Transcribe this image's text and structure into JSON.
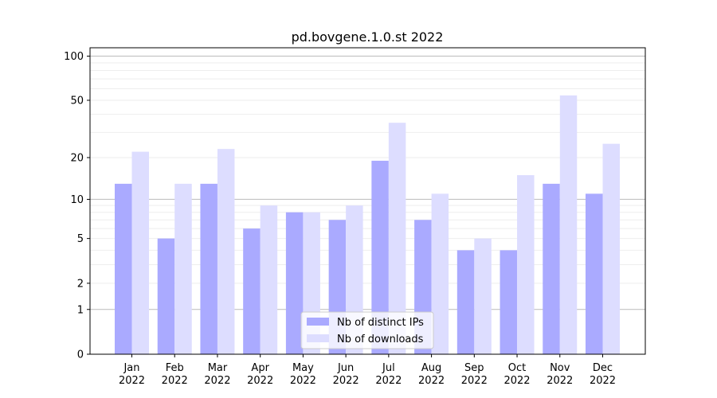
{
  "chart_data": {
    "type": "bar",
    "title": "pd.bovgene.1.0.st 2022",
    "xlabel": "",
    "ylabel": "",
    "yscale": "log(1+y)",
    "ylim": [
      0,
      114
    ],
    "yticks": [
      0,
      1,
      2,
      5,
      10,
      20,
      50,
      100
    ],
    "grid": true,
    "legend_position": "lower-center",
    "categories": [
      {
        "month": "Jan",
        "year": "2022"
      },
      {
        "month": "Feb",
        "year": "2022"
      },
      {
        "month": "Mar",
        "year": "2022"
      },
      {
        "month": "Apr",
        "year": "2022"
      },
      {
        "month": "May",
        "year": "2022"
      },
      {
        "month": "Jun",
        "year": "2022"
      },
      {
        "month": "Jul",
        "year": "2022"
      },
      {
        "month": "Aug",
        "year": "2022"
      },
      {
        "month": "Sep",
        "year": "2022"
      },
      {
        "month": "Oct",
        "year": "2022"
      },
      {
        "month": "Nov",
        "year": "2022"
      },
      {
        "month": "Dec",
        "year": "2022"
      }
    ],
    "series": [
      {
        "name": "Nb of distinct IPs",
        "color": "#aaaaff",
        "values": [
          13,
          5,
          13,
          6,
          8,
          7,
          19,
          7,
          4,
          4,
          13,
          11
        ]
      },
      {
        "name": "Nb of downloads",
        "color": "#ddddff",
        "values": [
          22,
          13,
          23,
          9,
          8,
          9,
          35,
          11,
          5,
          15,
          54,
          25
        ]
      }
    ]
  }
}
